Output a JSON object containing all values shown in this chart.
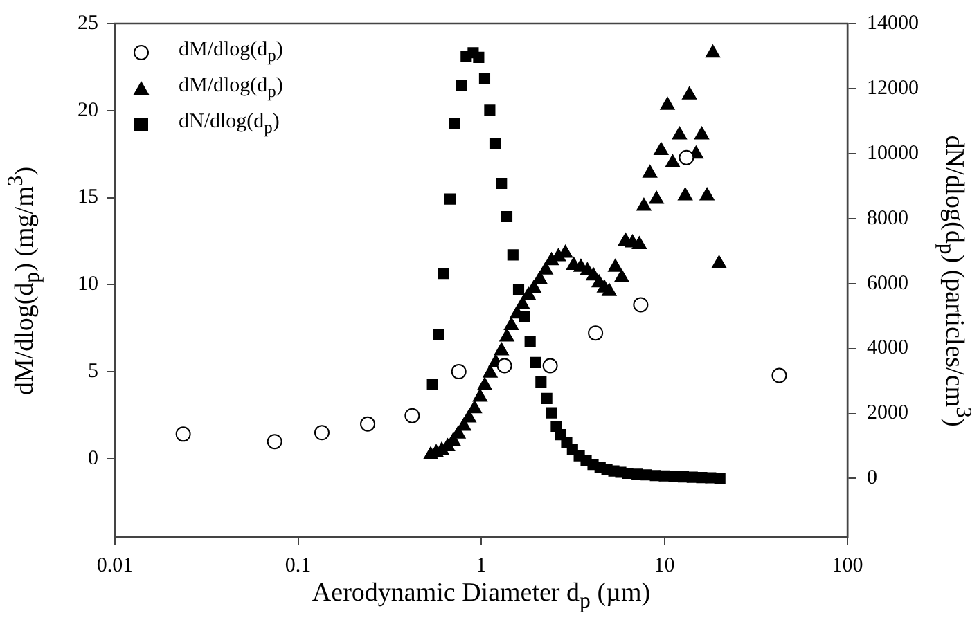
{
  "chart_data": {
    "type": "scatter",
    "xlabel": "Aerodynamic Diameter d$_{p}$ (µm)",
    "ylabel": "dM/dlog(d$_{p}$) (mg/m$^{3}$)",
    "y2label": "dN/dlog(d$_{p}$) (particles/cm$^{3}$)",
    "log": "x",
    "xlim": [
      0.01,
      100
    ],
    "xticks": [
      0.01,
      0.1,
      1,
      10,
      100
    ],
    "ylim": [
      -4.5,
      25
    ],
    "yticks": [
      0,
      5,
      10,
      15,
      20,
      25
    ],
    "y2lim": [
      -1800,
      14000
    ],
    "y2ticks": [
      0,
      2000,
      4000,
      6000,
      8000,
      10000,
      12000,
      14000
    ],
    "grid": false,
    "legend": "top left",
    "series": [
      {
        "name": "dM/dlog(d$_{p}$)",
        "color": "#000000",
        "marker": "circle",
        "x": [
          0.0236,
          0.0745,
          0.135,
          0.24,
          0.42,
          0.755,
          1.34,
          2.38,
          4.21,
          7.43,
          13.2,
          42.4
        ],
        "values": [
          1.41,
          0.98,
          1.49,
          1.99,
          2.47,
          5.0,
          5.34,
          5.34,
          7.22,
          8.84,
          17.3,
          4.78
        ]
      },
      {
        "name": "dM/dlog(d$_{p}$)",
        "color": "#000000",
        "marker": "triangle",
        "x": [
          0.53,
          0.568,
          0.609,
          0.656,
          0.703,
          0.75,
          0.804,
          0.857,
          0.92,
          0.986,
          1.045,
          1.12,
          1.2,
          1.29,
          1.38,
          1.46,
          1.57,
          1.68,
          1.81,
          1.94,
          2.09,
          2.25,
          2.42,
          2.64,
          2.88,
          3.2,
          3.5,
          3.8,
          4.1,
          4.4,
          4.7,
          5.0,
          5.4,
          5.85,
          6.14,
          6.7,
          7.3,
          7.73,
          8.34,
          9.06,
          9.6,
          10.4,
          11.1,
          12.1,
          13.0,
          13.7,
          14.9,
          16.0,
          17.1,
          18.4,
          19.9
        ],
        "values": [
          0.21,
          0.34,
          0.48,
          0.69,
          1.01,
          1.41,
          1.86,
          2.34,
          2.87,
          3.53,
          4.2,
          4.91,
          5.52,
          6.19,
          6.99,
          7.65,
          8.31,
          8.84,
          9.38,
          9.78,
          10.3,
          10.84,
          11.37,
          11.6,
          11.8,
          11.1,
          11.0,
          10.8,
          10.5,
          10.1,
          9.8,
          9.6,
          11.0,
          10.4,
          12.5,
          12.4,
          12.3,
          14.5,
          16.4,
          14.9,
          17.7,
          20.3,
          17.0,
          18.6,
          15.1,
          20.9,
          17.5,
          18.6,
          15.1,
          23.3,
          11.2
        ]
      },
      {
        "name": "dN/dlog(d$_{p}$)",
        "color": "#000000",
        "marker": "square",
        "axis": "y2",
        "x": [
          0.542,
          0.585,
          0.62,
          0.676,
          0.716,
          0.78,
          0.828,
          0.904,
          0.969,
          1.044,
          1.114,
          1.19,
          1.29,
          1.38,
          1.49,
          1.6,
          1.72,
          1.85,
          1.98,
          2.12,
          2.28,
          2.42,
          2.57,
          2.72,
          2.93,
          3.15,
          3.43,
          3.74,
          4.08,
          4.46,
          4.86,
          5.3,
          5.78,
          6.31,
          7.1,
          7.96,
          8.94,
          10.0,
          11.3,
          12.7,
          14.2,
          16.0,
          17.9,
          20.1
        ],
        "values": [
          2900,
          4430,
          6310,
          8600,
          10930,
          12100,
          13000,
          13100,
          12960,
          12300,
          11330,
          10300,
          9080,
          8060,
          6880,
          5820,
          4990,
          4220,
          3570,
          2970,
          2460,
          2020,
          1600,
          1350,
          1100,
          900,
          700,
          550,
          430,
          350,
          280,
          230,
          190,
          160,
          130,
          110,
          90,
          80,
          60,
          50,
          40,
          30,
          20,
          10
        ]
      }
    ]
  }
}
